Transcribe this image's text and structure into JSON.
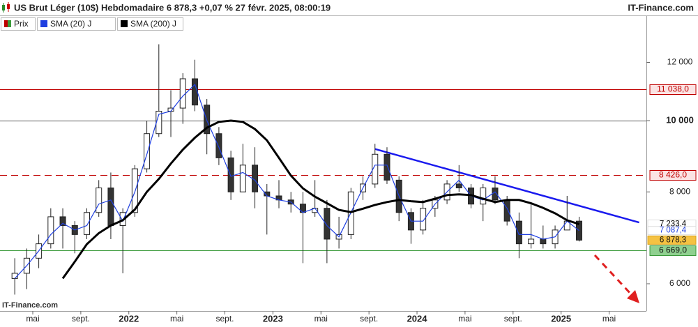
{
  "header": {
    "title": "US Brut Léger (10$) Hebdomadaire 6 878,3 +0,07 % 27 févr. 2025, 08:00:19",
    "brand": "IT-Finance.com"
  },
  "legend": [
    "Prix",
    "SMA (20) J",
    "SMA (200) J"
  ],
  "watermark": "IT-Finance.com",
  "chart_data": {
    "type": "candlestick",
    "log_scale": true,
    "x": [
      "2021-03",
      "2021-04",
      "2021-05",
      "2021-06",
      "2021-07",
      "2021-08",
      "2021-09",
      "2021-10",
      "2021-11",
      "2021-12",
      "2022-01",
      "2022-02",
      "2022-03",
      "2022-04",
      "2022-05",
      "2022-06",
      "2022-07",
      "2022-08",
      "2022-09",
      "2022-10",
      "2022-11",
      "2022-12",
      "2023-01",
      "2023-02",
      "2023-03",
      "2023-04",
      "2023-05",
      "2023-06",
      "2023-07",
      "2023-08",
      "2023-09",
      "2023-10",
      "2023-11",
      "2023-12",
      "2024-01",
      "2024-02",
      "2024-03",
      "2024-04",
      "2024-05",
      "2024-06",
      "2024-07",
      "2024-08",
      "2024-09",
      "2024-10",
      "2024-11",
      "2024-12",
      "2025-01",
      "2025-02"
    ],
    "open": [
      6100,
      6200,
      6500,
      6800,
      7400,
      7200,
      7000,
      7500,
      8100,
      7200,
      7500,
      8600,
      9600,
      10300,
      10400,
      11400,
      10500,
      9600,
      8900,
      8000,
      8700,
      8000,
      7900,
      7800,
      7700,
      7500,
      7600,
      6900,
      7000,
      8000,
      8200,
      9000,
      8300,
      7500,
      7100,
      7600,
      7800,
      8200,
      8100,
      7700,
      8100,
      7800,
      7300,
      6800,
      6900,
      6800,
      7100,
      7300
    ],
    "high": [
      6500,
      6700,
      7000,
      7600,
      7600,
      7300,
      7600,
      8300,
      8500,
      7600,
      8700,
      10000,
      12700,
      11000,
      11600,
      12100,
      10700,
      9800,
      9100,
      9300,
      9200,
      8200,
      8300,
      8000,
      8000,
      8300,
      7800,
      7400,
      8100,
      8400,
      9300,
      9200,
      8400,
      7600,
      7800,
      7900,
      8300,
      8700,
      8200,
      8200,
      8400,
      7900,
      7500,
      7700,
      7200,
      7200,
      7900,
      7400
    ],
    "low": [
      5800,
      5900,
      6300,
      6700,
      6700,
      6600,
      6900,
      7400,
      6900,
      6200,
      7400,
      8500,
      9500,
      9500,
      9900,
      10300,
      9000,
      8700,
      7800,
      8000,
      7600,
      7000,
      7600,
      7500,
      6400,
      7400,
      6400,
      6700,
      6900,
      7800,
      8100,
      8200,
      7300,
      6800,
      7000,
      7400,
      7700,
      8000,
      7600,
      7300,
      7700,
      7200,
      6500,
      6700,
      6700,
      6700,
      7100,
      6850
    ],
    "close": [
      6200,
      6500,
      6800,
      7400,
      7200,
      7000,
      7500,
      8100,
      7200,
      7500,
      8600,
      9600,
      10300,
      10400,
      11400,
      10500,
      9600,
      8900,
      8000,
      8700,
      8000,
      7900,
      7800,
      7700,
      7500,
      7600,
      6900,
      7000,
      8000,
      8200,
      9000,
      8300,
      7500,
      7100,
      7600,
      7800,
      8200,
      8100,
      7700,
      8100,
      7800,
      7300,
      6800,
      6900,
      6800,
      7100,
      7300,
      6878.3
    ],
    "close_label": "6 878,3",
    "close_label_bg": "#f5c242",
    "up_color": "#ffffff",
    "down_color": "#333333",
    "series": [
      {
        "name": "SMA (20) J",
        "color": "#1f3fe0",
        "last_label": "7 087,4",
        "values": [
          6100,
          6350,
          6650,
          7000,
          7250,
          7100,
          7200,
          7700,
          7800,
          7300,
          8000,
          9000,
          10200,
          10300,
          10800,
          11200,
          10000,
          9200,
          8400,
          8500,
          8300,
          7900,
          7800,
          7750,
          7500,
          7600,
          7200,
          6950,
          7500,
          8100,
          8700,
          8700,
          7900,
          7300,
          7300,
          7700,
          8000,
          8300,
          7900,
          7800,
          8000,
          7600,
          7000,
          7000,
          6900,
          6950,
          7300,
          7087.4
        ]
      },
      {
        "name": "SMA (200) J",
        "color": "#000000",
        "last_label": "7 233,4",
        "values": [
          null,
          null,
          null,
          null,
          6100,
          6430,
          6790,
          7030,
          7200,
          7320,
          7570,
          8000,
          8330,
          8740,
          9130,
          9480,
          9780,
          9960,
          10000,
          9960,
          9740,
          9400,
          8900,
          8420,
          8090,
          7880,
          7720,
          7560,
          7510,
          7590,
          7680,
          7750,
          7800,
          7770,
          7750,
          7830,
          7920,
          7940,
          7920,
          7830,
          7750,
          7800,
          7800,
          7720,
          7610,
          7480,
          7320,
          7233.4
        ]
      }
    ],
    "trendline": {
      "color": "#1a1aee",
      "x": [
        "2023-09",
        "2025-07"
      ],
      "values": [
        9150,
        7270
      ]
    },
    "levels": [
      {
        "value": 11038,
        "label": "11 038,0",
        "color": "#c00000",
        "label_bg": "#fbe3e3",
        "style": "solid"
      },
      {
        "value": 10000,
        "color": "#555555",
        "style": "solid"
      },
      {
        "value": 8426,
        "label": "8 426,0",
        "color": "#c00000",
        "label_bg": "#fbe3e3",
        "style": "dashed"
      },
      {
        "value": 6669,
        "label": "6 669,0",
        "color": "#3a9a3a",
        "label_bg": "#8fd08f",
        "style": "solid"
      }
    ],
    "xlim": [
      "2021-02",
      "2025-08"
    ],
    "xticks": [
      {
        "value": "2021-05",
        "label": "mai"
      },
      {
        "value": "2021-09",
        "label": "sept."
      },
      {
        "value": "2022-01",
        "label": "2022"
      },
      {
        "value": "2022-05",
        "label": "mai"
      },
      {
        "value": "2022-09",
        "label": "sept."
      },
      {
        "value": "2023-01",
        "label": "2023"
      },
      {
        "value": "2023-05",
        "label": "mai"
      },
      {
        "value": "2023-09",
        "label": "sept."
      },
      {
        "value": "2024-01",
        "label": "2024"
      },
      {
        "value": "2024-05",
        "label": "mai"
      },
      {
        "value": "2024-09",
        "label": "sept."
      },
      {
        "value": "2025-01",
        "label": "2025"
      },
      {
        "value": "2025-05",
        "label": "mai"
      }
    ],
    "ylim": [
      5510,
      13875
    ],
    "yticks": [
      {
        "value": 6000,
        "label": "6 000"
      },
      {
        "value": 8000,
        "label": "8 000"
      },
      {
        "value": 10000,
        "label": "10 000"
      },
      {
        "value": 12000,
        "label": "12 000"
      }
    ]
  }
}
